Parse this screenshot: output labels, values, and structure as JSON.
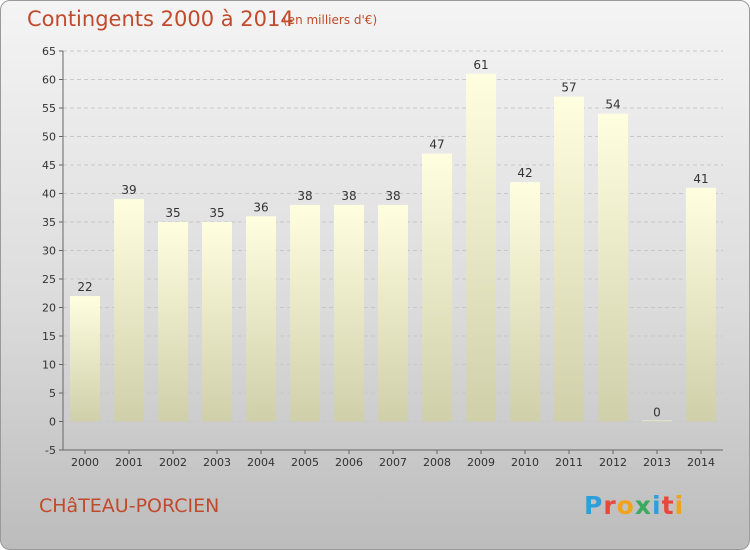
{
  "chart_data": {
    "type": "bar",
    "title": "Contingents 2000 à 2014",
    "subtitle": "(en milliers d'€)",
    "categories": [
      "2000",
      "2001",
      "2002",
      "2003",
      "2004",
      "2005",
      "2006",
      "2007",
      "2008",
      "2009",
      "2010",
      "2011",
      "2012",
      "2013",
      "2014"
    ],
    "values": [
      22,
      39,
      35,
      35,
      36,
      38,
      38,
      38,
      47,
      61,
      42,
      57,
      54,
      0,
      41
    ],
    "ylim": [
      -5,
      65
    ],
    "yticks": [
      -5,
      0,
      5,
      10,
      15,
      20,
      25,
      30,
      35,
      40,
      45,
      50,
      55,
      60,
      65
    ],
    "grid": true,
    "colors": {
      "bar_top": "#ffffe0",
      "bar_bottom": "#cfcfaa",
      "text": "#333333",
      "accent": "#c24a2c"
    }
  },
  "footer": {
    "commune": "CHâTEAU-PORCIEN",
    "logo": "Proxiti",
    "logo_colors": [
      "#2f9fdc",
      "#e8473b",
      "#f2a21b",
      "#3aaa5c",
      "#2f9fdc",
      "#e8473b",
      "#f2a21b"
    ]
  }
}
